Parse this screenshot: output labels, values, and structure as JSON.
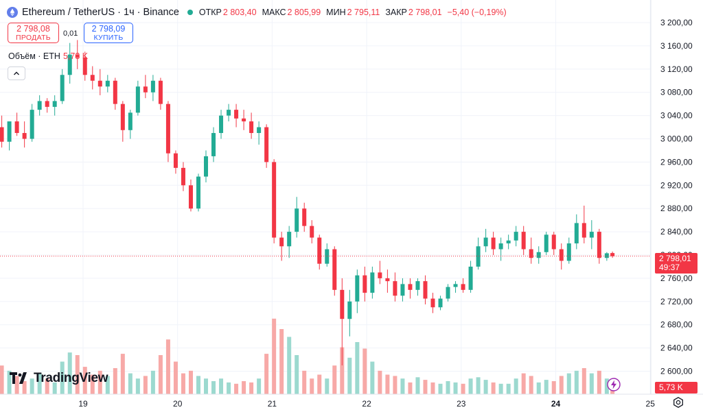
{
  "header": {
    "symbol": "Ethereum / TetherUS · 1ч · Binance",
    "market_status_color": "#22ab94",
    "open_label": "ОТКР",
    "open_value": "2 803,40",
    "high_label": "МАКС",
    "high_value": "2 805,99",
    "low_label": "МИН",
    "low_value": "2 795,11",
    "close_label": "ЗАКР",
    "close_value": "2 798,01",
    "change_value": "−5,40 (−0,19%)"
  },
  "trade": {
    "sell_price": "2 798,08",
    "sell_label": "ПРОДАТЬ",
    "spread": "0,01",
    "buy_price": "2 798,09",
    "buy_label": "КУПИТЬ"
  },
  "volume_legend": {
    "label": "Объём · ETH",
    "value": "5,73 K"
  },
  "logo_text": "TradingView",
  "price_label": {
    "value": "2 798,01",
    "countdown": "49:37"
  },
  "volume_label": "5,73 K",
  "colors": {
    "up": "#22ab94",
    "down": "#f23645",
    "up_volume": "#9cd9cf",
    "down_volume": "#f7a9a7",
    "grid": "#f0f3fa",
    "axis_text": "#131722"
  },
  "icons": {
    "bolt": "lightning-bolt-icon",
    "gear": "gear-icon",
    "collapse": "chevron-up-icon",
    "logo": "tradingview-logo-icon",
    "symbol": "ethereum-logo-icon"
  },
  "chart_data": {
    "type": "candlestick",
    "x_unit": "days (day-of-month, 1h candles)",
    "y_ticks": [
      3200,
      3160,
      3120,
      3080,
      3040,
      3000,
      2960,
      2920,
      2880,
      2840,
      2800,
      2760,
      2720,
      2680,
      2640,
      2600
    ],
    "y_tick_labels": [
      "3 200,00",
      "3 160,00",
      "3 120,00",
      "3 080,00",
      "3 040,00",
      "3 000,00",
      "2 960,00",
      "2 920,00",
      "2 880,00",
      "2 840,00",
      "2 800,00",
      "2 760,00",
      "2 720,00",
      "2 680,00",
      "2 640,00",
      "2 600,00"
    ],
    "x_ticks": [
      19,
      20,
      21,
      22,
      23,
      24,
      25
    ],
    "x_tick_labels": [
      "19",
      "20",
      "21",
      "22",
      "23",
      "24",
      "25"
    ],
    "current_price": 2798.01,
    "candles": [
      {
        "t": 18.14,
        "o": 3020,
        "h": 3040,
        "l": 2985,
        "c": 2995
      },
      {
        "t": 18.22,
        "o": 2995,
        "h": 3025,
        "l": 2980,
        "c": 3030
      },
      {
        "t": 18.3,
        "o": 3030,
        "h": 3045,
        "l": 3005,
        "c": 3010
      },
      {
        "t": 18.38,
        "o": 3010,
        "h": 3030,
        "l": 2985,
        "c": 3000
      },
      {
        "t": 18.46,
        "o": 3000,
        "h": 3060,
        "l": 2995,
        "c": 3050
      },
      {
        "t": 18.54,
        "o": 3050,
        "h": 3075,
        "l": 3040,
        "c": 3065
      },
      {
        "t": 18.62,
        "o": 3065,
        "h": 3070,
        "l": 3045,
        "c": 3055
      },
      {
        "t": 18.7,
        "o": 3055,
        "h": 3075,
        "l": 3040,
        "c": 3065
      },
      {
        "t": 18.78,
        "o": 3065,
        "h": 3120,
        "l": 3060,
        "c": 3110
      },
      {
        "t": 18.86,
        "o": 3110,
        "h": 3165,
        "l": 3095,
        "c": 3145
      },
      {
        "t": 18.94,
        "o": 3145,
        "h": 3170,
        "l": 3120,
        "c": 3140
      },
      {
        "t": 19.02,
        "o": 3140,
        "h": 3150,
        "l": 3100,
        "c": 3110
      },
      {
        "t": 19.1,
        "o": 3110,
        "h": 3125,
        "l": 3085,
        "c": 3100
      },
      {
        "t": 19.18,
        "o": 3100,
        "h": 3120,
        "l": 3075,
        "c": 3090
      },
      {
        "t": 19.26,
        "o": 3090,
        "h": 3110,
        "l": 3080,
        "c": 3100
      },
      {
        "t": 19.34,
        "o": 3100,
        "h": 3105,
        "l": 3050,
        "c": 3060
      },
      {
        "t": 19.42,
        "o": 3060,
        "h": 3065,
        "l": 2995,
        "c": 3015
      },
      {
        "t": 19.5,
        "o": 3015,
        "h": 3050,
        "l": 3000,
        "c": 3045
      },
      {
        "t": 19.58,
        "o": 3045,
        "h": 3100,
        "l": 3040,
        "c": 3090
      },
      {
        "t": 19.66,
        "o": 3090,
        "h": 3110,
        "l": 3070,
        "c": 3080
      },
      {
        "t": 19.74,
        "o": 3080,
        "h": 3110,
        "l": 3065,
        "c": 3100
      },
      {
        "t": 19.82,
        "o": 3100,
        "h": 3105,
        "l": 3050,
        "c": 3060
      },
      {
        "t": 19.9,
        "o": 3060,
        "h": 3065,
        "l": 2960,
        "c": 2975
      },
      {
        "t": 19.98,
        "o": 2975,
        "h": 2980,
        "l": 2940,
        "c": 2950
      },
      {
        "t": 20.06,
        "o": 2950,
        "h": 2960,
        "l": 2910,
        "c": 2920
      },
      {
        "t": 20.14,
        "o": 2920,
        "h": 2930,
        "l": 2875,
        "c": 2880
      },
      {
        "t": 20.22,
        "o": 2880,
        "h": 2940,
        "l": 2875,
        "c": 2935
      },
      {
        "t": 20.3,
        "o": 2935,
        "h": 2980,
        "l": 2925,
        "c": 2970
      },
      {
        "t": 20.38,
        "o": 2970,
        "h": 3020,
        "l": 2960,
        "c": 3010
      },
      {
        "t": 20.46,
        "o": 3010,
        "h": 3050,
        "l": 3000,
        "c": 3040
      },
      {
        "t": 20.54,
        "o": 3040,
        "h": 3060,
        "l": 3030,
        "c": 3050
      },
      {
        "t": 20.62,
        "o": 3050,
        "h": 3060,
        "l": 3020,
        "c": 3035
      },
      {
        "t": 20.7,
        "o": 3035,
        "h": 3050,
        "l": 3015,
        "c": 3030
      },
      {
        "t": 20.78,
        "o": 3030,
        "h": 3045,
        "l": 3000,
        "c": 3010
      },
      {
        "t": 20.86,
        "o": 3010,
        "h": 3030,
        "l": 2990,
        "c": 3020
      },
      {
        "t": 20.94,
        "o": 3020,
        "h": 3025,
        "l": 2950,
        "c": 2960
      },
      {
        "t": 21.02,
        "o": 2960,
        "h": 2965,
        "l": 2820,
        "c": 2830
      },
      {
        "t": 21.1,
        "o": 2830,
        "h": 2840,
        "l": 2790,
        "c": 2815
      },
      {
        "t": 21.18,
        "o": 2815,
        "h": 2850,
        "l": 2795,
        "c": 2840
      },
      {
        "t": 21.26,
        "o": 2840,
        "h": 2900,
        "l": 2830,
        "c": 2880
      },
      {
        "t": 21.34,
        "o": 2880,
        "h": 2890,
        "l": 2840,
        "c": 2850
      },
      {
        "t": 21.42,
        "o": 2850,
        "h": 2860,
        "l": 2820,
        "c": 2830
      },
      {
        "t": 21.5,
        "o": 2830,
        "h": 2835,
        "l": 2775,
        "c": 2785
      },
      {
        "t": 21.58,
        "o": 2785,
        "h": 2820,
        "l": 2780,
        "c": 2810
      },
      {
        "t": 21.66,
        "o": 2810,
        "h": 2815,
        "l": 2730,
        "c": 2740
      },
      {
        "t": 21.74,
        "o": 2740,
        "h": 2760,
        "l": 2610,
        "c": 2690
      },
      {
        "t": 21.82,
        "o": 2690,
        "h": 2740,
        "l": 2660,
        "c": 2720
      },
      {
        "t": 21.9,
        "o": 2720,
        "h": 2775,
        "l": 2700,
        "c": 2765
      },
      {
        "t": 21.98,
        "o": 2765,
        "h": 2780,
        "l": 2720,
        "c": 2735
      },
      {
        "t": 22.06,
        "o": 2735,
        "h": 2780,
        "l": 2725,
        "c": 2770
      },
      {
        "t": 22.14,
        "o": 2770,
        "h": 2790,
        "l": 2750,
        "c": 2760
      },
      {
        "t": 22.22,
        "o": 2760,
        "h": 2775,
        "l": 2735,
        "c": 2755
      },
      {
        "t": 22.3,
        "o": 2755,
        "h": 2770,
        "l": 2720,
        "c": 2730
      },
      {
        "t": 22.38,
        "o": 2730,
        "h": 2760,
        "l": 2720,
        "c": 2750
      },
      {
        "t": 22.46,
        "o": 2750,
        "h": 2760,
        "l": 2725,
        "c": 2740
      },
      {
        "t": 22.54,
        "o": 2740,
        "h": 2760,
        "l": 2730,
        "c": 2755
      },
      {
        "t": 22.62,
        "o": 2755,
        "h": 2765,
        "l": 2715,
        "c": 2725
      },
      {
        "t": 22.7,
        "o": 2725,
        "h": 2735,
        "l": 2700,
        "c": 2710
      },
      {
        "t": 22.78,
        "o": 2710,
        "h": 2730,
        "l": 2705,
        "c": 2725
      },
      {
        "t": 22.86,
        "o": 2725,
        "h": 2750,
        "l": 2720,
        "c": 2745
      },
      {
        "t": 22.94,
        "o": 2745,
        "h": 2755,
        "l": 2735,
        "c": 2750
      },
      {
        "t": 23.02,
        "o": 2750,
        "h": 2760,
        "l": 2735,
        "c": 2740
      },
      {
        "t": 23.1,
        "o": 2740,
        "h": 2790,
        "l": 2735,
        "c": 2780
      },
      {
        "t": 23.18,
        "o": 2780,
        "h": 2830,
        "l": 2775,
        "c": 2815
      },
      {
        "t": 23.26,
        "o": 2815,
        "h": 2845,
        "l": 2805,
        "c": 2830
      },
      {
        "t": 23.34,
        "o": 2830,
        "h": 2840,
        "l": 2800,
        "c": 2810
      },
      {
        "t": 23.42,
        "o": 2810,
        "h": 2830,
        "l": 2790,
        "c": 2820
      },
      {
        "t": 23.5,
        "o": 2820,
        "h": 2835,
        "l": 2810,
        "c": 2825
      },
      {
        "t": 23.58,
        "o": 2825,
        "h": 2850,
        "l": 2815,
        "c": 2840
      },
      {
        "t": 23.66,
        "o": 2840,
        "h": 2850,
        "l": 2800,
        "c": 2810
      },
      {
        "t": 23.74,
        "o": 2810,
        "h": 2830,
        "l": 2785,
        "c": 2795
      },
      {
        "t": 23.82,
        "o": 2795,
        "h": 2815,
        "l": 2785,
        "c": 2805
      },
      {
        "t": 23.9,
        "o": 2805,
        "h": 2840,
        "l": 2800,
        "c": 2835
      },
      {
        "t": 23.98,
        "o": 2835,
        "h": 2840,
        "l": 2800,
        "c": 2810
      },
      {
        "t": 24.06,
        "o": 2810,
        "h": 2820,
        "l": 2775,
        "c": 2790
      },
      {
        "t": 24.14,
        "o": 2790,
        "h": 2830,
        "l": 2785,
        "c": 2820
      },
      {
        "t": 24.22,
        "o": 2820,
        "h": 2870,
        "l": 2810,
        "c": 2855
      },
      {
        "t": 24.3,
        "o": 2855,
        "h": 2885,
        "l": 2820,
        "c": 2830
      },
      {
        "t": 24.38,
        "o": 2830,
        "h": 2860,
        "l": 2810,
        "c": 2840
      },
      {
        "t": 24.46,
        "o": 2840,
        "h": 2845,
        "l": 2785,
        "c": 2795
      },
      {
        "t": 24.54,
        "o": 2795,
        "h": 2805,
        "l": 2790,
        "c": 2803
      },
      {
        "t": 24.6,
        "o": 2803.4,
        "h": 2805.99,
        "l": 2795.11,
        "c": 2798.01
      }
    ],
    "volumes": [
      22,
      18,
      14,
      10,
      12,
      16,
      12,
      9,
      25,
      32,
      30,
      21,
      15,
      18,
      14,
      20,
      31,
      16,
      12,
      14,
      18,
      30,
      42,
      25,
      16,
      18,
      14,
      12,
      10,
      12,
      9,
      8,
      10,
      9,
      12,
      31,
      58,
      50,
      44,
      30,
      18,
      12,
      15,
      12,
      22,
      36,
      28,
      40,
      35,
      25,
      18,
      15,
      14,
      12,
      9,
      13,
      11,
      9,
      8,
      10,
      9,
      8,
      12,
      13,
      11,
      9,
      8,
      8,
      12,
      16,
      14,
      9,
      11,
      10,
      14,
      16,
      18,
      20,
      16,
      18,
      12,
      5.73
    ]
  }
}
